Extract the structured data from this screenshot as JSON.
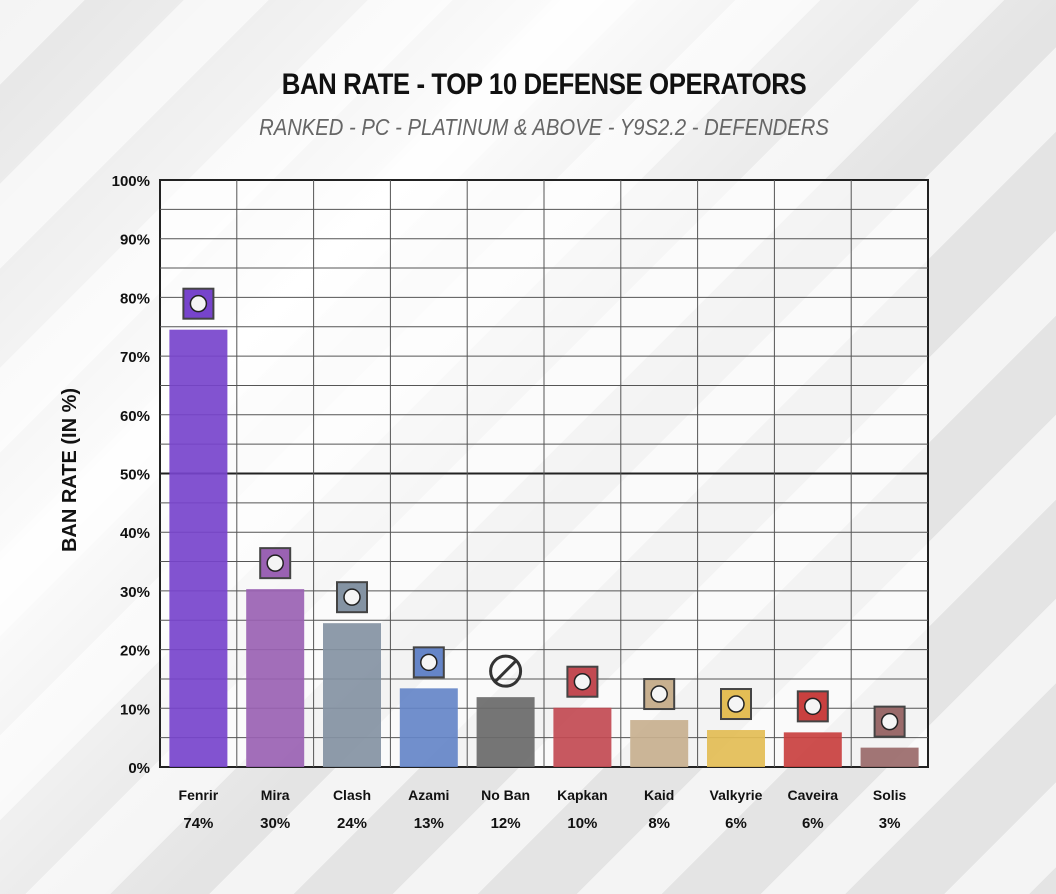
{
  "header": {
    "title": "BAN RATE - TOP 10 DEFENSE OPERATORS",
    "subtitle": "RANKED - PC - PLATINUM & ABOVE - Y9S2.2 - DEFENDERS"
  },
  "chart_data": {
    "type": "bar",
    "title": "BAN RATE - TOP 10 DEFENSE OPERATORS",
    "subtitle": "RANKED - PC - PLATINUM & ABOVE - Y9S2.2 - DEFENDERS",
    "ylabel": "BAN RATE (IN %)",
    "xlabel": "",
    "ylim": [
      0,
      100
    ],
    "yticks": [
      0,
      10,
      20,
      30,
      40,
      50,
      60,
      70,
      80,
      90,
      100
    ],
    "ytick_labels": [
      "0%",
      "10%",
      "20%",
      "30%",
      "40%",
      "50%",
      "60%",
      "70%",
      "80%",
      "90%",
      "100%"
    ],
    "grid": true,
    "categories": [
      "Fenrir",
      "Mira",
      "Clash",
      "Azami",
      "No Ban",
      "Kapkan",
      "Kaid",
      "Valkyrie",
      "Caveira",
      "Solis"
    ],
    "values": [
      74.5,
      30.3,
      24.5,
      13.4,
      11.9,
      10.1,
      8.0,
      6.3,
      5.9,
      3.3
    ],
    "value_labels": [
      "74%",
      "30%",
      "24%",
      "13%",
      "12%",
      "10%",
      "8%",
      "6%",
      "6%",
      "3%"
    ],
    "colors": [
      "#7744cc",
      "#9a62b3",
      "#8493a3",
      "#6585c8",
      "#6a6a6a",
      "#c24a52",
      "#c8b08f",
      "#e3bd55",
      "#c9403f",
      "#9a6a6a"
    ],
    "icons": [
      "fenrir-icon",
      "mira-icon",
      "clash-icon",
      "azami-icon",
      "no-ban-icon",
      "kapkan-icon",
      "kaid-icon",
      "valkyrie-icon",
      "caveira-icon",
      "solis-icon"
    ]
  }
}
